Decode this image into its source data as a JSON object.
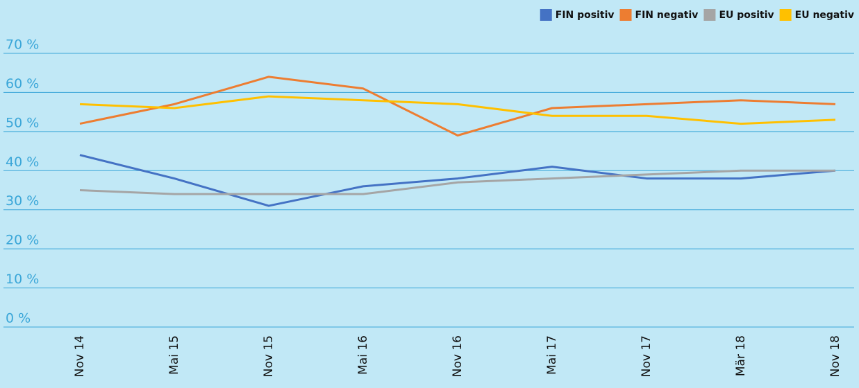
{
  "chart_data": {
    "type": "line",
    "categories": [
      "Nov 14",
      "Mai 15",
      "Nov 15",
      "Mai 16",
      "Nov 16",
      "Mai 17",
      "Nov 17",
      "Mär 18",
      "Nov 18"
    ],
    "series": [
      {
        "name": "FIN positiv",
        "color": "#4472c4",
        "values": [
          44,
          38,
          31,
          36,
          38,
          41,
          38,
          38,
          40
        ]
      },
      {
        "name": "FIN negativ",
        "color": "#ed7d31",
        "values": [
          52,
          57,
          64,
          61,
          49,
          56,
          57,
          58,
          57
        ]
      },
      {
        "name": "EU positiv",
        "color": "#a5a5a5",
        "values": [
          35,
          34,
          34,
          34,
          37,
          38,
          39,
          40,
          40
        ]
      },
      {
        "name": "EU negativ",
        "color": "#ffc000",
        "values": [
          57,
          56,
          59,
          58,
          57,
          54,
          54,
          52,
          53
        ]
      }
    ],
    "ylim": [
      0,
      70
    ],
    "yticks": [
      {
        "value": 0,
        "label": "0 %"
      },
      {
        "value": 10,
        "label": "10 %"
      },
      {
        "value": 20,
        "label": "20 %"
      },
      {
        "value": 30,
        "label": "30 %"
      },
      {
        "value": 40,
        "label": "40 %"
      },
      {
        "value": 50,
        "label": "50 %"
      },
      {
        "value": 60,
        "label": "60 %"
      },
      {
        "value": 70,
        "label": "70 %"
      }
    ],
    "grid": true,
    "legend": "top-right"
  }
}
